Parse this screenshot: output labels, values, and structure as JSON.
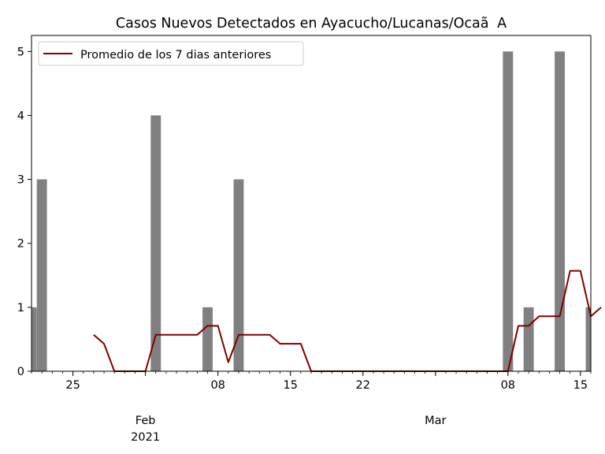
{
  "chart_data": {
    "type": "bar",
    "title": "Casos Nuevos Detectados en Ayacucho/Lucanas/OcaãA",
    "xlabel": "",
    "ylabel": "",
    "x_start": "2021-01-21",
    "x_end": "2021-03-16",
    "ylim": [
      0,
      5.25
    ],
    "yticks": [
      0,
      1,
      2,
      3,
      4,
      5
    ],
    "xticks_major": [
      {
        "date": "2021-01-25",
        "label": "25"
      },
      {
        "date": "2021-02-08",
        "label": "08"
      },
      {
        "date": "2021-02-15",
        "label": "15"
      },
      {
        "date": "2021-02-22",
        "label": "22"
      },
      {
        "date": "2021-03-08",
        "label": "08"
      },
      {
        "date": "2021-03-15",
        "label": "15"
      }
    ],
    "month_labels": [
      {
        "date": "2021-02-01",
        "label": "Feb",
        "sublabel": "2021"
      },
      {
        "date": "2021-03-01",
        "label": "Mar",
        "sublabel": ""
      }
    ],
    "bar_color": "#808080",
    "bars": [
      {
        "date": "2021-01-21",
        "value": 1
      },
      {
        "date": "2021-01-22",
        "value": 3
      },
      {
        "date": "2021-02-02",
        "value": 4
      },
      {
        "date": "2021-02-07",
        "value": 1
      },
      {
        "date": "2021-02-10",
        "value": 3
      },
      {
        "date": "2021-03-08",
        "value": 5
      },
      {
        "date": "2021-03-10",
        "value": 1
      },
      {
        "date": "2021-03-13",
        "value": 5
      },
      {
        "date": "2021-03-16",
        "value": 1
      }
    ],
    "series": [
      {
        "name": "Promedio de los 7 dias anteriores",
        "color": "#800000",
        "start_date": "2021-01-27",
        "values": [
          0.57,
          0.43,
          0,
          0,
          0,
          0,
          0.57,
          0.57,
          0.57,
          0.57,
          0.57,
          0.71,
          0.71,
          0.14,
          0.57,
          0.57,
          0.57,
          0.57,
          0.43,
          0.43,
          0.43,
          0,
          0,
          0,
          0,
          0,
          0,
          0,
          0,
          0,
          0,
          0,
          0,
          0,
          0,
          0,
          0,
          0,
          0,
          0,
          0,
          0.71,
          0.71,
          0.86,
          0.86,
          0.86,
          1.57,
          1.57,
          0.86,
          1.0
        ]
      }
    ],
    "legend": {
      "position": "top-left"
    },
    "grid": false
  }
}
